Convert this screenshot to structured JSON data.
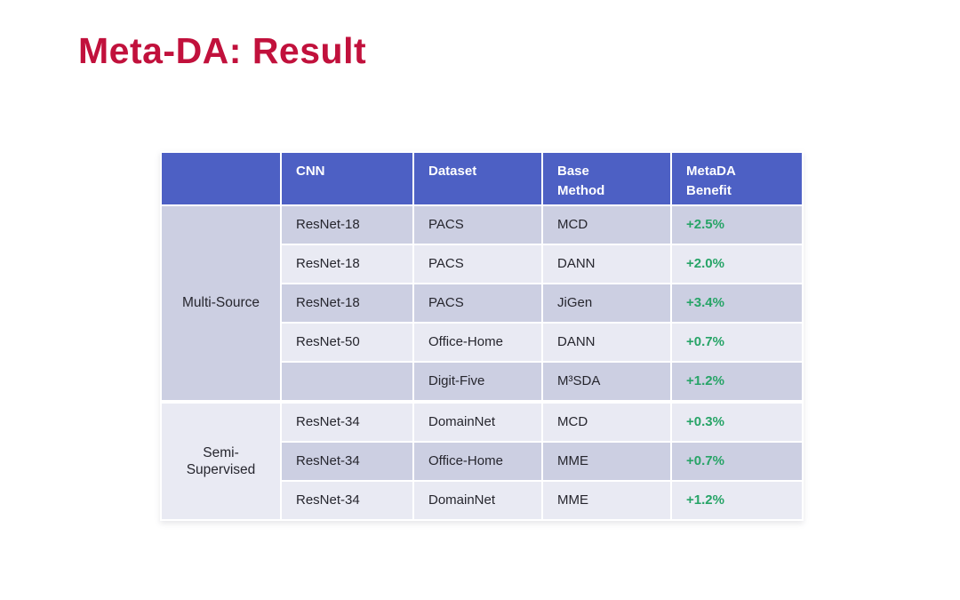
{
  "title": "Meta-DA: Result",
  "colors": {
    "title_red": "#C1113C",
    "header_bg": "#4D60C4",
    "row_dark": "#CCCFE2",
    "row_light": "#E9EAF3",
    "benefit_green": "#27A467",
    "body_text": "#26262E"
  },
  "table": {
    "headers": [
      "CNN",
      "Dataset",
      "Base\nMethod",
      "MetaDA\nBenefit"
    ],
    "groups": [
      {
        "label": "Multi-Source",
        "rows": [
          {
            "cnn": "ResNet-18",
            "dataset": "PACS",
            "base_method": "MCD",
            "benefit": "+2.5%"
          },
          {
            "cnn": "ResNet-18",
            "dataset": "PACS",
            "base_method": "DANN",
            "benefit": "+2.0%"
          },
          {
            "cnn": "ResNet-18",
            "dataset": "PACS",
            "base_method": "JiGen",
            "benefit": "+3.4%"
          },
          {
            "cnn": "ResNet-50",
            "dataset": "Office-Home",
            "base_method": "DANN",
            "benefit": "+0.7%"
          },
          {
            "cnn": "",
            "dataset": "Digit-Five",
            "base_method": "M³SDA",
            "benefit": "+1.2%"
          }
        ]
      },
      {
        "label": "Semi-\nSupervised",
        "rows": [
          {
            "cnn": "ResNet-34",
            "dataset": "DomainNet",
            "base_method": "MCD",
            "benefit": "+0.3%"
          },
          {
            "cnn": "ResNet-34",
            "dataset": "Office-Home",
            "base_method": "MME",
            "benefit": "+0.7%"
          },
          {
            "cnn": "ResNet-34",
            "dataset": "DomainNet",
            "base_method": "MME",
            "benefit": "+1.2%"
          }
        ]
      }
    ]
  }
}
